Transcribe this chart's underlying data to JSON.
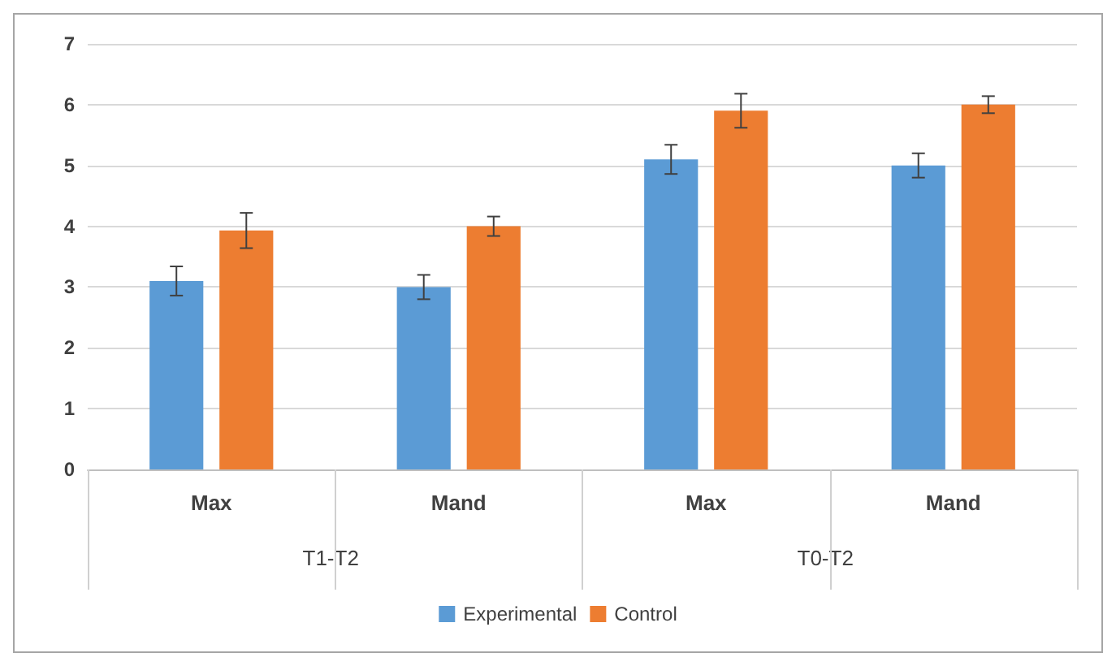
{
  "chart_data": {
    "type": "bar",
    "categories": [
      "Max",
      "Mand",
      "Max",
      "Mand"
    ],
    "series": [
      {
        "name": "Experimental",
        "color": "#5b9bd5",
        "values": [
          3.1,
          3.0,
          5.1,
          5.0
        ],
        "errors": [
          0.24,
          0.2,
          0.24,
          0.2
        ]
      },
      {
        "name": "Control",
        "color": "#ed7d31",
        "values": [
          3.93,
          4.0,
          5.9,
          6.0
        ],
        "errors": [
          0.29,
          0.16,
          0.28,
          0.14
        ]
      }
    ],
    "annotations": [
      "T1-T2",
      "T0-T2"
    ],
    "ylim": [
      0,
      7
    ],
    "yticks": [
      0,
      1,
      2,
      3,
      4,
      5,
      6,
      7
    ],
    "grid": "y",
    "legend": "bottom"
  }
}
